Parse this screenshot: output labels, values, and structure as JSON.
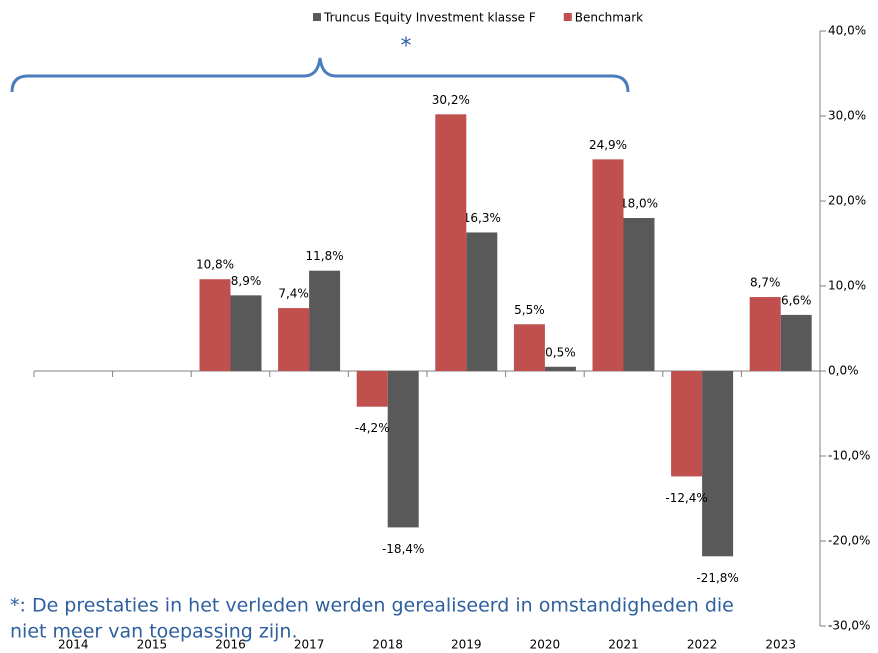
{
  "chart_data": {
    "type": "bar",
    "categories": [
      "2014",
      "2015",
      "2016",
      "2017",
      "2018",
      "2019",
      "2020",
      "2021",
      "2022",
      "2023"
    ],
    "series": [
      {
        "name": "Truncus Equity Investment klasse F",
        "color": "#595959",
        "values": [
          null,
          null,
          8.9,
          11.8,
          -18.4,
          16.3,
          0.5,
          18.0,
          -21.8,
          6.6
        ],
        "value_labels": [
          null,
          null,
          "8,9%",
          "11,8%",
          "-18,4%",
          "16,3%",
          "0,5%",
          "18,0%",
          "-21,8%",
          "6,6%"
        ]
      },
      {
        "name": "Benchmark",
        "color": "#c0504d",
        "values": [
          null,
          null,
          10.8,
          7.4,
          -4.2,
          30.2,
          5.5,
          24.9,
          -12.4,
          8.7
        ],
        "value_labels": [
          null,
          null,
          "10,8%",
          "7,4%",
          "-4,2%",
          "30,2%",
          "5,5%",
          "24,9%",
          "-12,4%",
          "8,7%"
        ]
      }
    ],
    "ylim": [
      -30,
      40
    ],
    "yticks": [
      {
        "value": -30,
        "label": "-30,0%"
      },
      {
        "value": -20,
        "label": "-20,0%"
      },
      {
        "value": -10,
        "label": "-10,0%"
      },
      {
        "value": 0,
        "label": "0,0%"
      },
      {
        "value": 10,
        "label": "10,0%"
      },
      {
        "value": 20,
        "label": "20,0%"
      },
      {
        "value": 30,
        "label": "30,0%"
      },
      {
        "value": 40,
        "label": "40,0%"
      }
    ],
    "legend": "top",
    "annotation": "*",
    "footnote": [
      "*: De prestaties in het verleden werden gerealiseerd in omstandigheden die",
      "niet meer van toepassing zijn."
    ]
  }
}
